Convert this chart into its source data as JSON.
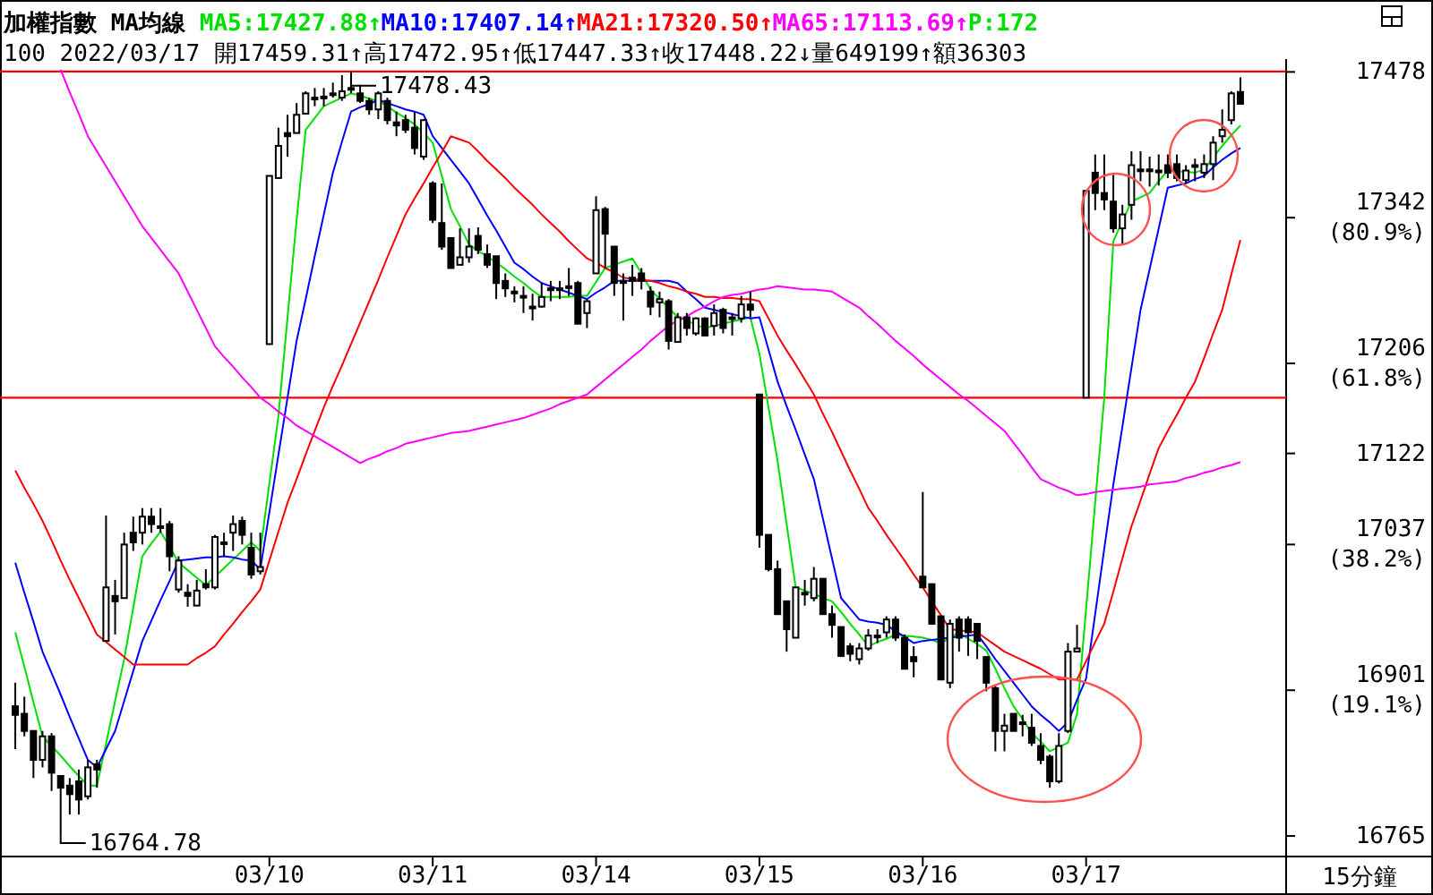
{
  "chart_data": {
    "type": "candlestick",
    "title": "加權指數 MA均線",
    "subtitle": "100 2022/03/17 開17459.31↑高17472.95↑低17447.33↑收17448.22↓量649199↑額36303",
    "legend": "top",
    "color": "#000000",
    "ylim": [
      16750,
      17490
    ],
    "yticks": [
      17478,
      {
        "value": 17342,
        "label": "17342\n(80.9%)"
      },
      {
        "value": 17206,
        "label": "17206\n(61.8%)"
      },
      17122,
      {
        "value": 17037,
        "label": "17037\n(38.2%)"
      },
      {
        "value": 16901,
        "label": "16901\n(19.1%)"
      },
      16765
    ],
    "categories": [
      null,
      null,
      null,
      null,
      null,
      null,
      null,
      null,
      null,
      null,
      null,
      null,
      null,
      null,
      null,
      null,
      null,
      null,
      null,
      null,
      null,
      null,
      null,
      null,
      null,
      null,
      null,
      null,
      "03/10",
      null,
      null,
      null,
      null,
      null,
      null,
      null,
      null,
      null,
      null,
      null,
      null,
      null,
      null,
      null,
      null,
      null,
      "03/11",
      null,
      null,
      null,
      null,
      null,
      null,
      null,
      null,
      null,
      null,
      null,
      null,
      null,
      null,
      null,
      null,
      null,
      "03/14",
      null,
      null,
      null,
      null,
      null,
      null,
      null,
      null,
      null,
      null,
      null,
      null,
      null,
      null,
      null,
      null,
      null,
      "03/15",
      null,
      null,
      null,
      null,
      null,
      null,
      null,
      null,
      null,
      null,
      null,
      null,
      null,
      null,
      null,
      null,
      null,
      "03/16",
      null,
      null,
      null,
      null,
      null,
      null,
      null,
      null,
      null,
      null,
      null,
      null,
      null,
      null,
      null,
      null,
      null,
      "03/17",
      null,
      null,
      null,
      null,
      null,
      null,
      null,
      null,
      null,
      null,
      null,
      null,
      null,
      null,
      null,
      null,
      null
    ],
    "ohlc": [
      [
        16886,
        16908,
        16846,
        16878
      ],
      [
        16879,
        16895,
        16858,
        16863
      ],
      [
        16863,
        16863,
        16819,
        16836
      ],
      [
        16836,
        16863,
        16829,
        16858
      ],
      [
        16858,
        16861,
        16807,
        16824
      ],
      [
        16821,
        16821,
        16764.78,
        16810
      ],
      [
        16812,
        16819,
        16785,
        16804
      ],
      [
        16816,
        16827,
        16785,
        16799
      ],
      [
        16802,
        16836,
        16799,
        16829
      ],
      [
        16832,
        16836,
        16810,
        16827
      ],
      [
        16947,
        17064,
        16947,
        16997
      ],
      [
        16989,
        17004,
        16953,
        16984
      ],
      [
        16987,
        17048,
        16987,
        17037
      ],
      [
        17048,
        17063,
        17031,
        17039
      ],
      [
        17048,
        17071,
        17037,
        17063
      ],
      [
        17063,
        17071,
        17048,
        17056
      ],
      [
        17054,
        17071,
        17048,
        17054
      ],
      [
        17056,
        17059,
        17012,
        17026
      ],
      [
        16995,
        17026,
        16992,
        17022
      ],
      [
        16992,
        17000,
        16979,
        16989
      ],
      [
        16980,
        17004,
        16980,
        16994
      ],
      [
        17000,
        17014,
        16995,
        16997
      ],
      [
        16997,
        17046,
        16995,
        17044
      ],
      [
        17039,
        17048,
        17026,
        17039
      ],
      [
        17048,
        17064,
        17031,
        17056
      ],
      [
        17059,
        17063,
        17037,
        17046
      ],
      [
        17034,
        17048,
        17005,
        17009
      ],
      [
        17012,
        17048,
        17009,
        17016
      ],
      [
        17224,
        17381,
        17224,
        17381
      ],
      [
        17379,
        17426,
        17379,
        17409
      ],
      [
        17421,
        17438,
        17399,
        17418
      ],
      [
        17421,
        17449,
        17421,
        17438
      ],
      [
        17439,
        17460,
        17439,
        17458
      ],
      [
        17454,
        17463,
        17446,
        17454
      ],
      [
        17454,
        17463,
        17446,
        17455
      ],
      [
        17458,
        17468,
        17454,
        17458
      ],
      [
        17454,
        17475,
        17451,
        17460
      ],
      [
        17463,
        17478.43,
        17458,
        17462
      ],
      [
        17458,
        17466,
        17449,
        17451
      ],
      [
        17451,
        17454,
        17438,
        17443
      ],
      [
        17443,
        17460,
        17434,
        17458
      ],
      [
        17451,
        17454,
        17429,
        17433
      ],
      [
        17431,
        17441,
        17418,
        17428
      ],
      [
        17433,
        17438,
        17421,
        17424
      ],
      [
        17426,
        17441,
        17401,
        17407
      ],
      [
        17399,
        17434,
        17396,
        17433
      ],
      [
        17374,
        17376,
        17337,
        17340
      ],
      [
        17337,
        17374,
        17312,
        17315
      ],
      [
        17323,
        17323,
        17295,
        17295
      ],
      [
        17298,
        17332,
        17298,
        17305
      ],
      [
        17305,
        17332,
        17300,
        17315
      ],
      [
        17325,
        17333,
        17308,
        17312
      ],
      [
        17308,
        17317,
        17295,
        17298
      ],
      [
        17306,
        17306,
        17266,
        17281
      ],
      [
        17283,
        17290,
        17268,
        17276
      ],
      [
        17273,
        17278,
        17263,
        17273
      ],
      [
        17269,
        17278,
        17253,
        17269
      ],
      [
        17259,
        17271,
        17246,
        17259
      ],
      [
        17259,
        17281,
        17258,
        17268
      ],
      [
        17276,
        17283,
        17264,
        17276
      ],
      [
        17276,
        17283,
        17266,
        17275
      ],
      [
        17278,
        17295,
        17269,
        17278
      ],
      [
        17281,
        17283,
        17243,
        17243
      ],
      [
        17253,
        17266,
        17239,
        17264
      ],
      [
        17290,
        17362,
        17290,
        17349
      ],
      [
        17350,
        17352,
        17295,
        17327
      ],
      [
        17315,
        17315,
        17269,
        17281
      ],
      [
        17283,
        17290,
        17246,
        17281
      ],
      [
        17286,
        17298,
        17269,
        17283
      ],
      [
        17290,
        17295,
        17275,
        17283
      ],
      [
        17273,
        17278,
        17251,
        17259
      ],
      [
        17263,
        17273,
        17249,
        17266
      ],
      [
        17264,
        17266,
        17219,
        17227
      ],
      [
        17226,
        17253,
        17226,
        17249
      ],
      [
        17249,
        17253,
        17232,
        17239
      ],
      [
        17234,
        17249,
        17232,
        17248
      ],
      [
        17248,
        17249,
        17232,
        17232
      ],
      [
        17241,
        17261,
        17232,
        17253
      ],
      [
        17256,
        17258,
        17234,
        17239
      ],
      [
        17249,
        17253,
        17232,
        17249
      ],
      [
        17248,
        17269,
        17244,
        17261
      ],
      [
        17261,
        17273,
        17249,
        17256
      ],
      [
        17177,
        17177,
        17034,
        17046
      ],
      [
        17046,
        17046,
        17012,
        17014
      ],
      [
        17014,
        17022,
        16972,
        16972
      ],
      [
        16984,
        16984,
        16937,
        16958
      ],
      [
        16950,
        16997,
        16950,
        16997
      ],
      [
        16992,
        17004,
        16980,
        16992
      ],
      [
        16987,
        17016,
        16984,
        17005
      ],
      [
        17005,
        17005,
        16972,
        16972
      ],
      [
        16972,
        16980,
        16950,
        16962
      ],
      [
        16960,
        16960,
        16932,
        16933
      ],
      [
        16942,
        16945,
        16928,
        16935
      ],
      [
        16930,
        16945,
        16925,
        16940
      ],
      [
        16940,
        16958,
        16938,
        16952
      ],
      [
        16952,
        16958,
        16945,
        16952
      ],
      [
        16955,
        16970,
        16950,
        16967
      ],
      [
        16967,
        16970,
        16947,
        16950
      ],
      [
        16950,
        16953,
        16921,
        16921
      ],
      [
        16932,
        16942,
        16913,
        16928
      ],
      [
        17007,
        17086,
        16997,
        16997
      ],
      [
        17000,
        17000,
        16962,
        16963
      ],
      [
        16970,
        16970,
        16911,
        16911
      ],
      [
        16908,
        16967,
        16903,
        16963
      ],
      [
        16967,
        16970,
        16937,
        16950
      ],
      [
        16967,
        16970,
        16933,
        16955
      ],
      [
        16963,
        16963,
        16930,
        16947
      ],
      [
        16932,
        16933,
        16900,
        16908
      ],
      [
        16903,
        16905,
        16844,
        16863
      ],
      [
        16863,
        16879,
        16844,
        16868
      ],
      [
        16879,
        16879,
        16863,
        16863
      ],
      [
        16871,
        16878,
        16858,
        16871
      ],
      [
        16866,
        16879,
        16849,
        16852
      ],
      [
        16849,
        16861,
        16832,
        16836
      ],
      [
        16839,
        16841,
        16810,
        16816
      ],
      [
        16816,
        16861,
        16814,
        16849
      ],
      [
        16863,
        16945,
        16861,
        16937
      ],
      [
        16937,
        16962,
        16937,
        16940
      ],
      [
        17174,
        17367,
        17174,
        17367
      ],
      [
        17384,
        17401,
        17349,
        17365
      ],
      [
        17365,
        17401,
        17349,
        17359
      ],
      [
        17357,
        17382,
        17328,
        17332
      ],
      [
        17332,
        17354,
        17317,
        17345
      ],
      [
        17354,
        17404,
        17340,
        17391
      ],
      [
        17387,
        17404,
        17376,
        17387
      ],
      [
        17387,
        17399,
        17371,
        17387
      ],
      [
        17386,
        17401,
        17372,
        17386
      ],
      [
        17391,
        17401,
        17379,
        17384
      ],
      [
        17392,
        17401,
        17376,
        17379
      ],
      [
        17377,
        17391,
        17374,
        17386
      ],
      [
        17391,
        17397,
        17376,
        17391
      ],
      [
        17384,
        17401,
        17379,
        17392
      ],
      [
        17392,
        17418,
        17377,
        17412
      ],
      [
        17418,
        17443,
        17412,
        17424
      ],
      [
        17433,
        17460,
        17429,
        17458
      ],
      [
        17459.31,
        17472.95,
        17447.33,
        17448.22
      ]
    ],
    "series": [
      {
        "type": "line",
        "name": "MA5:17427.88↑",
        "color": "#00e000",
        "values": [
          16955,
          16923,
          16890,
          16858,
          16849,
          16840,
          16830,
          16821,
          16812,
          16812,
          16851,
          16891,
          16930,
          16978,
          17026,
          17038,
          17049,
          17035,
          17020,
          17013,
          17006,
          16999,
          17007,
          17015,
          17023,
          17031,
          17039,
          17031,
          17094,
          17157,
          17249,
          17340,
          17424,
          17435,
          17446,
          17450,
          17454,
          17458,
          17456,
          17453,
          17451,
          17446,
          17440,
          17435,
          17429,
          17421,
          17412,
          17381,
          17350,
          17334,
          17317,
          17311,
          17306,
          17300,
          17294,
          17287,
          17281,
          17274,
          17268,
          17268,
          17268,
          17268,
          17269,
          17269,
          17282,
          17295,
          17298,
          17301,
          17304,
          17290,
          17275,
          17266,
          17258,
          17249,
          17246,
          17242,
          17239,
          17241,
          17243,
          17245,
          17247,
          17249,
          17215,
          17165,
          17115,
          17056,
          16997,
          16994,
          16991,
          16987,
          16984,
          16974,
          16963,
          16953,
          16942,
          16946,
          16949,
          16953,
          16952,
          16951,
          16950,
          16948,
          16945,
          16950,
          16955,
          16949,
          16944,
          16938,
          16921,
          16903,
          16886,
          16874,
          16861,
          16853,
          16844,
          16848,
          16852,
          16879,
          16977,
          17076,
          17174,
          17320,
          17339,
          17357,
          17361,
          17365,
          17376,
          17386,
          17385,
          17385,
          17384,
          17387,
          17398,
          17409,
          17419,
          17428
        ]
      },
      {
        "type": "line",
        "name": "MA10:17407.14↑",
        "color": "#0000ff",
        "values": [
          17020,
          16992,
          16965,
          16937,
          16917,
          16897,
          16876,
          16856,
          16836,
          16829,
          16846,
          16863,
          16891,
          16919,
          16947,
          16966,
          16985,
          17003,
          17022,
          17023,
          17024,
          17025,
          17025,
          17026,
          17025,
          17023,
          17022,
          17014,
          17067,
          17121,
          17174,
          17227,
          17266,
          17306,
          17345,
          17384,
          17413,
          17441,
          17445,
          17448,
          17452,
          17449,
          17446,
          17443,
          17441,
          17438,
          17418,
          17407,
          17396,
          17385,
          17374,
          17359,
          17344,
          17330,
          17315,
          17300,
          17294,
          17287,
          17281,
          17278,
          17275,
          17272,
          17269,
          17266,
          17272,
          17277,
          17283,
          17283,
          17283,
          17283,
          17283,
          17283,
          17283,
          17281,
          17273,
          17266,
          17258,
          17256,
          17254,
          17252,
          17250,
          17248,
          17249,
          17219,
          17189,
          17166,
          17144,
          17121,
          17098,
          17061,
          17024,
          16987,
          16977,
          16967,
          16965,
          16964,
          16962,
          16956,
          16951,
          16945,
          16947,
          16948,
          16949,
          16950,
          16951,
          16952,
          16953,
          16942,
          16930,
          16919,
          16908,
          16897,
          16886,
          16878,
          16871,
          16863,
          16871,
          16892,
          16912,
          16972,
          17033,
          17093,
          17147,
          17202,
          17256,
          17294,
          17332,
          17370,
          17372,
          17374,
          17378,
          17381,
          17389,
          17396,
          17402,
          17407
        ]
      },
      {
        "type": "line",
        "name": "MA21:17320.50↑",
        "color": "#ff0000",
        "values": [
          17106,
          17090,
          17075,
          17059,
          17041,
          17022,
          17004,
          16987,
          16970,
          16953,
          16946,
          16939,
          16932,
          16925,
          16925,
          16925,
          16925,
          16925,
          16925,
          16925,
          16931,
          16936,
          16942,
          16953,
          16963,
          16974,
          16984,
          16995,
          17022,
          17049,
          17076,
          17098,
          17121,
          17143,
          17165,
          17185,
          17204,
          17224,
          17244,
          17264,
          17284,
          17305,
          17325,
          17345,
          17360,
          17374,
          17389,
          17403,
          17418,
          17415,
          17412,
          17404,
          17395,
          17387,
          17379,
          17370,
          17362,
          17354,
          17345,
          17337,
          17329,
          17320,
          17312,
          17304,
          17300,
          17295,
          17291,
          17286,
          17285,
          17284,
          17283,
          17281,
          17278,
          17276,
          17273,
          17271,
          17268,
          17268,
          17267,
          17267,
          17266,
          17266,
          17264,
          17248,
          17232,
          17218,
          17205,
          17191,
          17177,
          17159,
          17142,
          17124,
          17106,
          17089,
          17071,
          17059,
          17046,
          17034,
          17022,
          17009,
          16997,
          16984,
          16971,
          16958,
          16957,
          16956,
          16955,
          16949,
          16943,
          16937,
          16933,
          16929,
          16925,
          16921,
          16916,
          16911,
          16911,
          16911,
          16928,
          16946,
          16963,
          16993,
          17024,
          17054,
          17078,
          17103,
          17127,
          17143,
          17158,
          17174,
          17189,
          17211,
          17234,
          17256,
          17289,
          17321
        ]
      },
      {
        "type": "line",
        "name": "MA65:17113.69↑",
        "color": "#ff00ff",
        "values": [
          null,
          null,
          null,
          null,
          null,
          17480,
          17459,
          17439,
          17418,
          17404,
          17390,
          17376,
          17362,
          17348,
          17334,
          17323,
          17312,
          17301,
          17290,
          17273,
          17256,
          17239,
          17222,
          17212,
          17203,
          17193,
          17184,
          17174,
          17168,
          17161,
          17155,
          17148,
          17143,
          17138,
          17133,
          17128,
          17123,
          17118,
          17113,
          17117,
          17120,
          17124,
          17127,
          17131,
          17133,
          17135,
          17137,
          17139,
          17141,
          17142,
          17143,
          17145,
          17147,
          17149,
          17151,
          17153,
          17155,
          17158,
          17161,
          17164,
          17168,
          17171,
          17174,
          17177,
          17184,
          17191,
          17198,
          17205,
          17212,
          17219,
          17227,
          17234,
          17241,
          17246,
          17250,
          17255,
          17259,
          17264,
          17268,
          17270,
          17271,
          17273,
          17275,
          17276,
          17278,
          17277,
          17276,
          17275,
          17275,
          17274,
          17273,
          17268,
          17263,
          17258,
          17250,
          17243,
          17235,
          17227,
          17220,
          17213,
          17205,
          17198,
          17191,
          17184,
          17177,
          17171,
          17164,
          17157,
          17150,
          17143,
          17132,
          17121,
          17109,
          17098,
          17094,
          17090,
          17087,
          17083,
          17084,
          17086,
          17087,
          17088,
          17089,
          17090,
          17091,
          17093,
          17094,
          17095,
          17096,
          17099,
          17101,
          17104,
          17106,
          17109,
          17111,
          17114
        ]
      }
    ],
    "ref_lines": [
      {
        "axis": "y",
        "value": 17478.43,
        "color": "#ff0000"
      },
      {
        "axis": "y",
        "value": 17174,
        "color": "#ff0000"
      }
    ],
    "annotations": [
      {
        "text": "17478.43",
        "y": 17478.43
      },
      "16764.78",
      "P:172",
      "15分鐘"
    ]
  }
}
